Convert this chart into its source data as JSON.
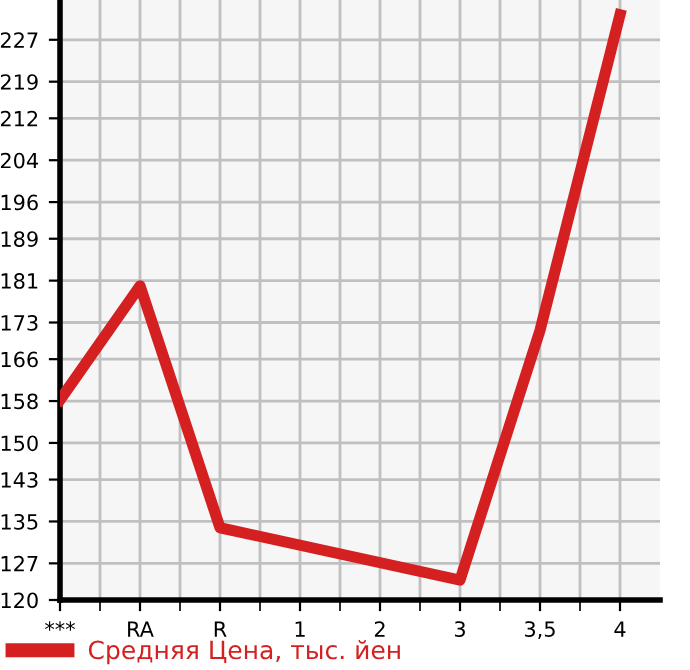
{
  "chart_data": {
    "type": "line",
    "categories": [
      "***",
      "RA",
      "R",
      "1",
      "2",
      "3",
      "3,5",
      "4"
    ],
    "series": [
      {
        "name": "Средняя Цена, тыс. йен",
        "color": "#d42020",
        "values": [
          158.2,
          180,
          133.8,
          null,
          null,
          123.8,
          171.5,
          231.8
        ]
      }
    ],
    "ylim": [
      120,
      234.6
    ],
    "yticks": [
      120,
      127,
      135,
      143,
      150,
      158,
      166,
      173,
      181,
      189,
      196,
      204,
      212,
      219,
      227
    ],
    "grid": true,
    "legend": "bottom",
    "marker": "none",
    "line_style": "solid"
  }
}
